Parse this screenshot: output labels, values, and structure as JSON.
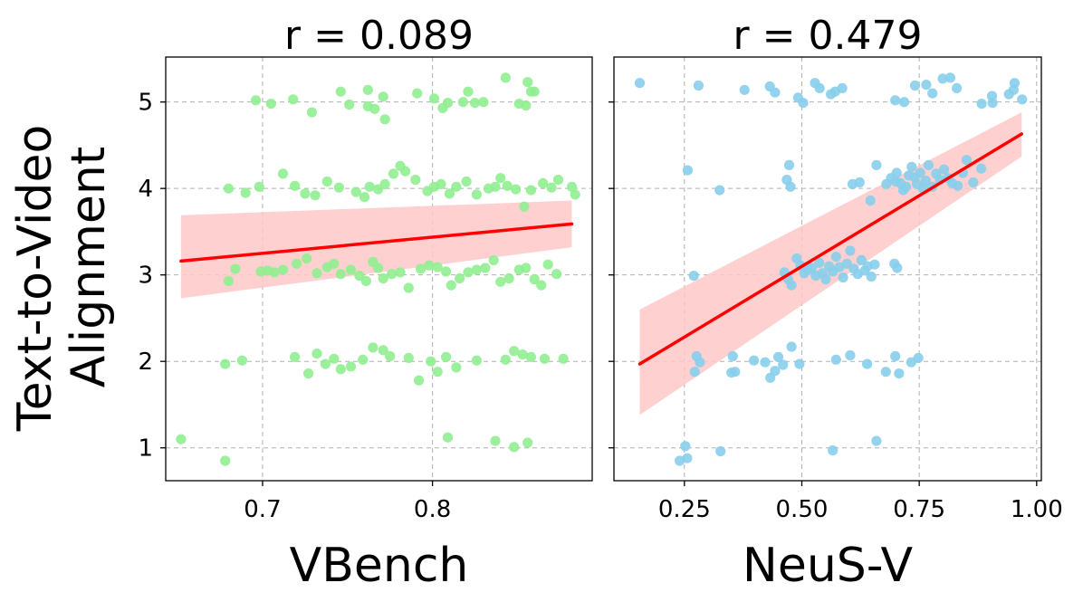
{
  "figure": {
    "ylabel_line1": "Text-to-Video",
    "ylabel_line2": "Alignment"
  },
  "chart_data": [
    {
      "type": "scatter",
      "title": "r = 0.089",
      "xlabel": "VBench",
      "ylabel": "Text-to-Video Alignment",
      "xlim": [
        0.643,
        0.894
      ],
      "ylim": [
        0.62,
        5.52
      ],
      "xticks": [
        0.7,
        0.8
      ],
      "xtick_labels": [
        "0.7",
        "0.8"
      ],
      "yticks": [
        1,
        2,
        3,
        4,
        5
      ],
      "ytick_labels": [
        "1",
        "2",
        "3",
        "4",
        "5"
      ],
      "grid": true,
      "point_color": "#90ee90",
      "regression": {
        "x": [
          0.652,
          0.882
        ],
        "y": [
          3.16,
          3.59
        ],
        "ci_low": [
          2.73,
          3.32
        ],
        "ci_high": [
          3.69,
          3.86
        ],
        "color": "#ff0000",
        "band_color": "#ffc8c8"
      },
      "points": [
        [
          0.652,
          1.1
        ],
        [
          0.678,
          0.85
        ],
        [
          0.848,
          1.01
        ],
        [
          0.856,
          1.06
        ],
        [
          0.837,
          1.08
        ],
        [
          0.809,
          1.12
        ],
        [
          0.696,
          5.02
        ],
        [
          0.705,
          4.98
        ],
        [
          0.718,
          5.03
        ],
        [
          0.729,
          4.88
        ],
        [
          0.746,
          5.12
        ],
        [
          0.751,
          4.97
        ],
        [
          0.762,
          5.14
        ],
        [
          0.762,
          4.95
        ],
        [
          0.766,
          4.92
        ],
        [
          0.771,
          5.06
        ],
        [
          0.772,
          4.8
        ],
        [
          0.791,
          5.1
        ],
        [
          0.801,
          5.04
        ],
        [
          0.806,
          4.93
        ],
        [
          0.809,
          4.99
        ],
        [
          0.818,
          5.0
        ],
        [
          0.821,
          5.12
        ],
        [
          0.825,
          4.99
        ],
        [
          0.83,
          5.0
        ],
        [
          0.843,
          5.28
        ],
        [
          0.851,
          4.98
        ],
        [
          0.855,
          4.96
        ],
        [
          0.856,
          5.23
        ],
        [
          0.858,
          5.12
        ],
        [
          0.86,
          5.12
        ],
        [
          0.68,
          4.0
        ],
        [
          0.69,
          3.95
        ],
        [
          0.698,
          4.02
        ],
        [
          0.712,
          4.17
        ],
        [
          0.719,
          4.03
        ],
        [
          0.725,
          3.94
        ],
        [
          0.731,
          3.92
        ],
        [
          0.738,
          4.08
        ],
        [
          0.745,
          4.01
        ],
        [
          0.755,
          3.96
        ],
        [
          0.76,
          3.9
        ],
        [
          0.763,
          4.02
        ],
        [
          0.768,
          3.99
        ],
        [
          0.772,
          4.05
        ],
        [
          0.777,
          4.17
        ],
        [
          0.781,
          4.26
        ],
        [
          0.784,
          4.2
        ],
        [
          0.79,
          4.1
        ],
        [
          0.797,
          3.97
        ],
        [
          0.801,
          4.02
        ],
        [
          0.805,
          4.05
        ],
        [
          0.81,
          3.94
        ],
        [
          0.814,
          4.02
        ],
        [
          0.82,
          4.08
        ],
        [
          0.826,
          3.93
        ],
        [
          0.833,
          4.0
        ],
        [
          0.837,
          4.02
        ],
        [
          0.84,
          4.12
        ],
        [
          0.844,
          4.03
        ],
        [
          0.849,
          3.99
        ],
        [
          0.854,
          3.79
        ],
        [
          0.858,
          3.98
        ],
        [
          0.865,
          4.06
        ],
        [
          0.87,
          4.01
        ],
        [
          0.874,
          4.1
        ],
        [
          0.882,
          4.02
        ],
        [
          0.884,
          3.93
        ],
        [
          0.68,
          2.93
        ],
        [
          0.684,
          3.07
        ],
        [
          0.699,
          3.04
        ],
        [
          0.703,
          3.05
        ],
        [
          0.707,
          3.03
        ],
        [
          0.712,
          3.06
        ],
        [
          0.72,
          3.13
        ],
        [
          0.726,
          3.19
        ],
        [
          0.732,
          3.02
        ],
        [
          0.738,
          3.09
        ],
        [
          0.742,
          3.13
        ],
        [
          0.746,
          3.01
        ],
        [
          0.752,
          3.06
        ],
        [
          0.757,
          2.99
        ],
        [
          0.761,
          2.93
        ],
        [
          0.765,
          3.15
        ],
        [
          0.768,
          3.08
        ],
        [
          0.771,
          2.96
        ],
        [
          0.776,
          3.01
        ],
        [
          0.781,
          3.03
        ],
        [
          0.786,
          2.85
        ],
        [
          0.793,
          3.07
        ],
        [
          0.798,
          3.11
        ],
        [
          0.803,
          3.09
        ],
        [
          0.808,
          3.04
        ],
        [
          0.811,
          2.88
        ],
        [
          0.816,
          2.96
        ],
        [
          0.821,
          3.03
        ],
        [
          0.826,
          3.06
        ],
        [
          0.831,
          3.08
        ],
        [
          0.836,
          3.17
        ],
        [
          0.84,
          2.92
        ],
        [
          0.845,
          2.96
        ],
        [
          0.851,
          3.06
        ],
        [
          0.855,
          3.08
        ],
        [
          0.86,
          2.95
        ],
        [
          0.864,
          2.88
        ],
        [
          0.868,
          3.12
        ],
        [
          0.873,
          3.01
        ],
        [
          0.678,
          1.97
        ],
        [
          0.688,
          2.01
        ],
        [
          0.719,
          2.05
        ],
        [
          0.727,
          1.86
        ],
        [
          0.732,
          2.09
        ],
        [
          0.737,
          1.97
        ],
        [
          0.742,
          2.03
        ],
        [
          0.746,
          1.91
        ],
        [
          0.752,
          1.94
        ],
        [
          0.759,
          2.02
        ],
        [
          0.765,
          2.16
        ],
        [
          0.771,
          2.13
        ],
        [
          0.775,
          2.06
        ],
        [
          0.786,
          2.04
        ],
        [
          0.792,
          1.78
        ],
        [
          0.799,
          2.0
        ],
        [
          0.803,
          1.88
        ],
        [
          0.808,
          2.05
        ],
        [
          0.814,
          1.93
        ],
        [
          0.826,
          2.01
        ],
        [
          0.843,
          2.02
        ],
        [
          0.848,
          2.12
        ],
        [
          0.853,
          2.08
        ],
        [
          0.858,
          2.05
        ],
        [
          0.866,
          2.03
        ],
        [
          0.877,
          2.03
        ]
      ]
    },
    {
      "type": "scatter",
      "title": "r = 0.479",
      "xlabel": "NeuS-V",
      "ylabel": "Text-to-Video Alignment",
      "xlim": [
        0.1,
        1.01
      ],
      "ylim": [
        0.62,
        5.52
      ],
      "xticks": [
        0.25,
        0.5,
        0.75,
        1.0
      ],
      "xtick_labels": [
        "0.25",
        "0.50",
        "0.75",
        "1.00"
      ],
      "yticks": [
        1,
        2,
        3,
        4,
        5
      ],
      "ytick_labels": [
        "",
        "",
        "",
        "",
        ""
      ],
      "grid": true,
      "point_color": "#87ceeb",
      "regression": {
        "x": [
          0.155,
          0.968
        ],
        "y": [
          1.97,
          4.63
        ],
        "ci_low": [
          1.38,
          4.37
        ],
        "ci_high": [
          2.6,
          4.88
        ],
        "color": "#ff0000",
        "band_color": "#ffc8c8"
      },
      "points": [
        [
          0.24,
          0.85
        ],
        [
          0.256,
          0.88
        ],
        [
          0.252,
          1.02
        ],
        [
          0.327,
          0.96
        ],
        [
          0.566,
          0.97
        ],
        [
          0.659,
          1.08
        ],
        [
          0.155,
          5.22
        ],
        [
          0.28,
          5.19
        ],
        [
          0.378,
          5.14
        ],
        [
          0.432,
          5.18
        ],
        [
          0.443,
          5.11
        ],
        [
          0.492,
          5.05
        ],
        [
          0.503,
          4.99
        ],
        [
          0.528,
          5.22
        ],
        [
          0.538,
          5.16
        ],
        [
          0.562,
          5.09
        ],
        [
          0.571,
          5.12
        ],
        [
          0.586,
          5.16
        ],
        [
          0.699,
          5.02
        ],
        [
          0.718,
          5.0
        ],
        [
          0.741,
          5.19
        ],
        [
          0.765,
          5.2
        ],
        [
          0.778,
          5.1
        ],
        [
          0.8,
          5.27
        ],
        [
          0.816,
          5.28
        ],
        [
          0.83,
          5.16
        ],
        [
          0.883,
          4.98
        ],
        [
          0.905,
          5.07
        ],
        [
          0.906,
          4.99
        ],
        [
          0.941,
          5.09
        ],
        [
          0.951,
          5.14
        ],
        [
          0.953,
          5.22
        ],
        [
          0.969,
          5.03
        ],
        [
          0.257,
          4.21
        ],
        [
          0.325,
          3.98
        ],
        [
          0.468,
          4.1
        ],
        [
          0.473,
          4.27
        ],
        [
          0.476,
          4.02
        ],
        [
          0.608,
          4.05
        ],
        [
          0.623,
          4.07
        ],
        [
          0.646,
          3.86
        ],
        [
          0.659,
          4.27
        ],
        [
          0.68,
          4.05
        ],
        [
          0.69,
          4.12
        ],
        [
          0.7,
          4.08
        ],
        [
          0.702,
          4.18
        ],
        [
          0.71,
          4.06
        ],
        [
          0.716,
          3.98
        ],
        [
          0.722,
          4.02
        ],
        [
          0.728,
          4.15
        ],
        [
          0.734,
          4.25
        ],
        [
          0.74,
          4.13
        ],
        [
          0.745,
          4.05
        ],
        [
          0.752,
          4.18
        ],
        [
          0.758,
          4.0
        ],
        [
          0.764,
          4.09
        ],
        [
          0.77,
          4.27
        ],
        [
          0.778,
          4.02
        ],
        [
          0.786,
          4.17
        ],
        [
          0.794,
          4.1
        ],
        [
          0.803,
          4.22
        ],
        [
          0.812,
          4.12
        ],
        [
          0.82,
          4.06
        ],
        [
          0.832,
          4.03
        ],
        [
          0.843,
          4.18
        ],
        [
          0.851,
          4.33
        ],
        [
          0.865,
          4.07
        ],
        [
          0.882,
          4.23
        ],
        [
          0.27,
          2.99
        ],
        [
          0.463,
          3.03
        ],
        [
          0.471,
          2.95
        ],
        [
          0.478,
          2.88
        ],
        [
          0.489,
          3.19
        ],
        [
          0.497,
          3.11
        ],
        [
          0.505,
          3.02
        ],
        [
          0.513,
          3.06
        ],
        [
          0.521,
          3.08
        ],
        [
          0.53,
          2.99
        ],
        [
          0.537,
          3.14
        ],
        [
          0.544,
          3.02
        ],
        [
          0.551,
          2.95
        ],
        [
          0.558,
          3.1
        ],
        [
          0.566,
          3.04
        ],
        [
          0.573,
          3.21
        ],
        [
          0.58,
          3.09
        ],
        [
          0.588,
          2.97
        ],
        [
          0.596,
          3.13
        ],
        [
          0.603,
          3.28
        ],
        [
          0.611,
          3.07
        ],
        [
          0.619,
          3.01
        ],
        [
          0.627,
          3.17
        ],
        [
          0.634,
          3.05
        ],
        [
          0.64,
          3.1
        ],
        [
          0.648,
          2.98
        ],
        [
          0.655,
          3.12
        ],
        [
          0.697,
          3.13
        ],
        [
          0.703,
          3.08
        ],
        [
          0.272,
          1.88
        ],
        [
          0.276,
          2.06
        ],
        [
          0.283,
          1.99
        ],
        [
          0.35,
          1.87
        ],
        [
          0.353,
          2.06
        ],
        [
          0.358,
          1.88
        ],
        [
          0.398,
          2.01
        ],
        [
          0.422,
          1.99
        ],
        [
          0.433,
          1.81
        ],
        [
          0.443,
          1.89
        ],
        [
          0.45,
          2.05
        ],
        [
          0.46,
          1.96
        ],
        [
          0.478,
          2.17
        ],
        [
          0.495,
          1.97
        ],
        [
          0.573,
          2.02
        ],
        [
          0.603,
          2.07
        ],
        [
          0.639,
          1.97
        ],
        [
          0.679,
          1.88
        ],
        [
          0.699,
          2.06
        ],
        [
          0.707,
          1.86
        ],
        [
          0.733,
          1.99
        ],
        [
          0.748,
          2.04
        ]
      ]
    }
  ]
}
